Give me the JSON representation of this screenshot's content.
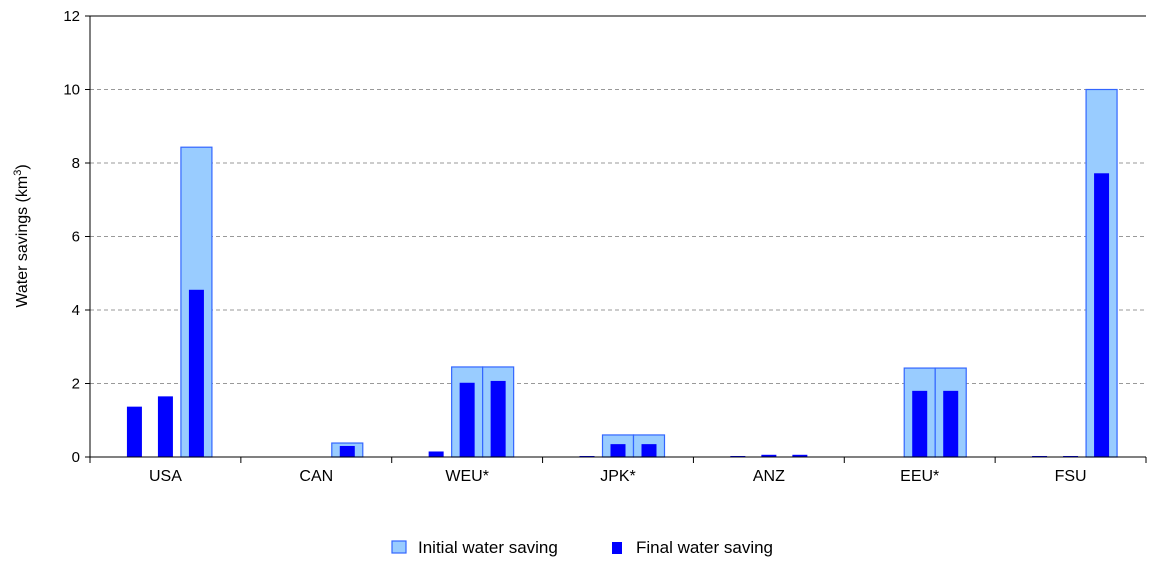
{
  "chart_data": {
    "type": "bar",
    "title": "",
    "xlabel": "",
    "ylabel": "Water savings (km",
    "ylabel_sup": "3",
    "ylabel_suffix": ")",
    "ylim": [
      0,
      12
    ],
    "yticks": [
      "0",
      "2",
      "4",
      "6",
      "8",
      "10",
      "12"
    ],
    "grid": "horizontal-dashed",
    "legend_position": "bottom-center",
    "categories": [
      "USA",
      "CAN",
      "WEU*",
      "JPK*",
      "ANZ",
      "EEU*",
      "FSU"
    ],
    "bars_per_category": 3,
    "series": [
      {
        "name": "Initial water saving",
        "color": "#99ccff",
        "edge_color": "#3366ff",
        "values": [
          [
            0,
            0,
            8.43
          ],
          [
            0,
            0,
            0.38
          ],
          [
            0,
            2.45,
            2.45
          ],
          [
            0,
            0.6,
            0.6
          ],
          [
            0,
            0,
            0
          ],
          [
            0,
            2.42,
            2.42
          ],
          [
            0,
            0,
            10.0
          ]
        ]
      },
      {
        "name": "Final water saving",
        "color": "#0000ff",
        "values": [
          [
            1.37,
            1.65,
            4.55
          ],
          [
            0,
            0,
            0.3
          ],
          [
            0.15,
            2.02,
            2.07
          ],
          [
            0.02,
            0.35,
            0.35
          ],
          [
            0.02,
            0.06,
            0.06
          ],
          [
            0,
            1.8,
            1.8
          ],
          [
            0.02,
            0.02,
            7.72
          ]
        ]
      }
    ]
  }
}
